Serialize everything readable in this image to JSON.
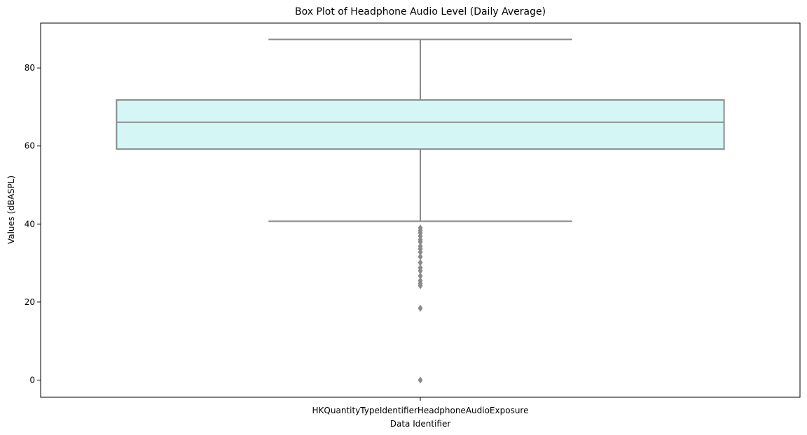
{
  "chart_data": {
    "type": "box",
    "title": "Box Plot of Headphone Audio Level (Daily Average)",
    "xlabel": "Data Identifier",
    "ylabel": "Values (dBASPL)",
    "categories": [
      "HKQuantityTypeIdentifierHeadphoneAudioExposure"
    ],
    "ylim": [
      -4.4,
      91.5
    ],
    "yticks": [
      0,
      20,
      40,
      60,
      80
    ],
    "box": {
      "whisker_low": 40.7,
      "q1": 59.2,
      "median": 66.1,
      "q3": 71.8,
      "whisker_high": 87.3
    },
    "outliers": [
      39.0,
      38.3,
      37.7,
      36.9,
      36.0,
      35.4,
      34.3,
      33.6,
      32.8,
      31.6,
      30.1,
      28.8,
      28.0,
      26.7,
      25.5,
      24.8,
      24.2,
      18.4,
      0.0
    ],
    "colors": {
      "box_fill": "#d4f7f5",
      "line": "#8a8a8a",
      "outlier": "#8a8a8a"
    },
    "grid": false
  }
}
